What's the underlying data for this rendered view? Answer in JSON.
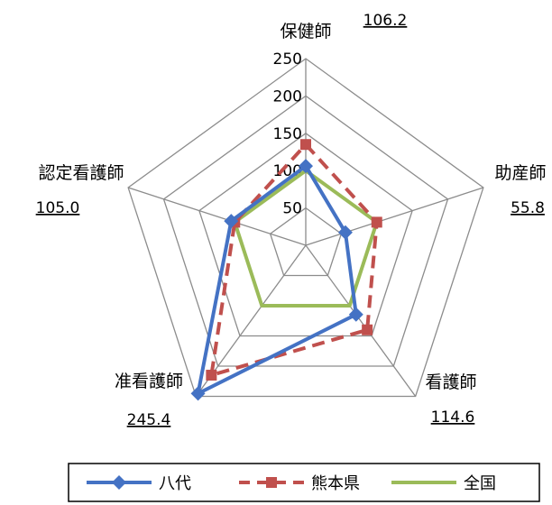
{
  "chart_data": {
    "type": "radar",
    "categories": [
      "保健師",
      "助産師",
      "看護師",
      "准看護師",
      "認定看護師"
    ],
    "value_labels": [
      "106.2",
      "55.8",
      "114.6",
      "245.4",
      "105.0"
    ],
    "radial_ticks": [
      "50",
      "100",
      "150",
      "200",
      "250"
    ],
    "range": [
      0,
      250
    ],
    "series": [
      {
        "name": "八代",
        "color": "#4472C4",
        "line": "solid",
        "marker": "diamond",
        "values": [
          106.2,
          55.8,
          114.6,
          245.4,
          105.0
        ]
      },
      {
        "name": "熊本県",
        "color": "#C0504D",
        "line": "dashed",
        "marker": "square",
        "values": [
          135,
          100,
          140,
          215,
          100
        ]
      },
      {
        "name": "全国",
        "color": "#9BBB59",
        "line": "solid",
        "marker": "none",
        "values": [
          100,
          100,
          100,
          100,
          100
        ]
      }
    ],
    "grid": true,
    "legend_position": "bottom"
  }
}
